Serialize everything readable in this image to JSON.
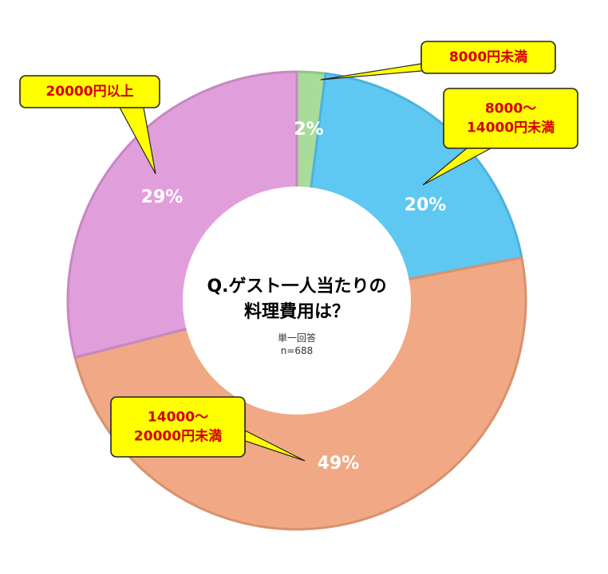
{
  "chart_data": {
    "type": "pie",
    "variant": "donut",
    "title_lines": [
      "Q.ゲスト一人当たりの",
      "料理費用は？"
    ],
    "subtitle_lines": [
      "単一回答",
      "n=688"
    ],
    "slices": [
      {
        "label_lines": [
          "8000円未満"
        ],
        "value": 2,
        "pct_label": "2%",
        "color": "#a9dc9a",
        "edge": "#8fc77f"
      },
      {
        "label_lines": [
          "8000〜",
          "14000円未満"
        ],
        "value": 20,
        "pct_label": "20%",
        "color": "#5ec8f2",
        "edge": "#4bb3de"
      },
      {
        "label_lines": [
          "14000〜",
          "20000円未満"
        ],
        "value": 49,
        "pct_label": "49%",
        "color": "#f0a984",
        "edge": "#d8916d"
      },
      {
        "label_lines": [
          "20000円以上"
        ],
        "value": 29,
        "pct_label": "29%",
        "color": "#e09fdb",
        "edge": "#c886c3"
      }
    ],
    "callout_colors": {
      "fill": "#ffff00",
      "border": "#222222",
      "text": "#d40000"
    }
  }
}
